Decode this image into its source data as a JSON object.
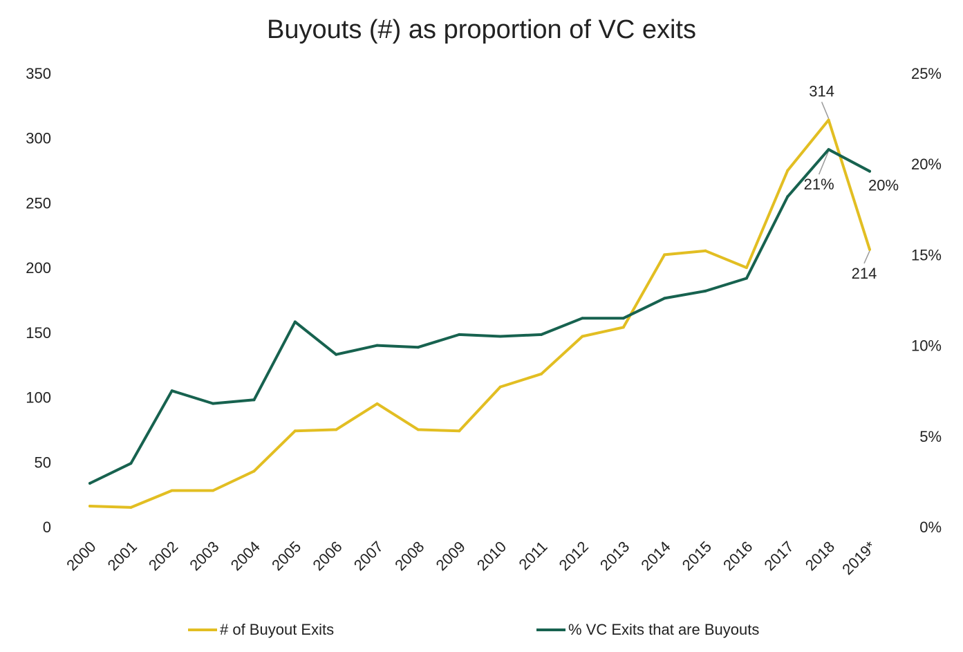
{
  "chart_data": {
    "type": "line",
    "title": "Buyouts (#) as proportion of VC exits",
    "categories": [
      "2000",
      "2001",
      "2002",
      "2003",
      "2004",
      "2005",
      "2006",
      "2007",
      "2008",
      "2009",
      "2010",
      "2011",
      "2012",
      "2013",
      "2014",
      "2015",
      "2016",
      "2017",
      "2018",
      "2019*"
    ],
    "y_left": {
      "ylim": [
        0,
        350
      ],
      "ticks": [
        "0",
        "50",
        "100",
        "150",
        "200",
        "250",
        "300",
        "350"
      ]
    },
    "y_right": {
      "ylim": [
        0,
        25
      ],
      "ticks": [
        "0%",
        "5%",
        "10%",
        "15%",
        "20%",
        "25%"
      ]
    },
    "series": [
      {
        "name": "# of Buyout Exits",
        "axis": "left",
        "color": "#E2BE22",
        "values": [
          16,
          15,
          28,
          28,
          43,
          74,
          75,
          95,
          75,
          74,
          108,
          118,
          147,
          154,
          210,
          213,
          200,
          275,
          314,
          214
        ]
      },
      {
        "name": "% VC Exits that are Buyouts",
        "axis": "right",
        "color": "#17624F",
        "values": [
          2.4,
          3.5,
          7.5,
          6.8,
          7.0,
          11.3,
          9.5,
          10.0,
          9.9,
          10.6,
          10.5,
          10.6,
          11.5,
          11.5,
          12.6,
          13.0,
          13.7,
          18.2,
          20.8,
          19.6
        ]
      }
    ],
    "annotations": [
      {
        "text": "314",
        "series": 0,
        "index": 18
      },
      {
        "text": "214",
        "series": 0,
        "index": 19
      },
      {
        "text": "21%",
        "series": 1,
        "index": 18
      },
      {
        "text": "20%",
        "series": 1,
        "index": 19
      }
    ],
    "grid": false,
    "legend_position": "bottom"
  }
}
